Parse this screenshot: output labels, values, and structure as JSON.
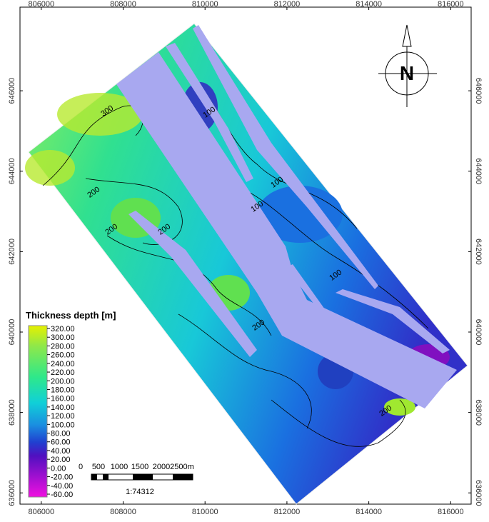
{
  "map": {
    "xlim": [
      805480,
      816500
    ],
    "ylim": [
      635720,
      648080
    ],
    "xticks": [
      806000,
      808000,
      810000,
      812000,
      814000,
      816000
    ],
    "yticks": [
      636000,
      638000,
      640000,
      642000,
      644000,
      646000
    ],
    "contour_labels": [
      "300",
      "200",
      "200",
      "200",
      "100",
      "100",
      "100",
      "100",
      "200",
      "200"
    ],
    "north_label": "N"
  },
  "legend": {
    "title": "Thickness depth [m]",
    "ticks": [
      {
        "value": 320,
        "label": "320.00"
      },
      {
        "value": 300,
        "label": "300.00"
      },
      {
        "value": 280,
        "label": "280.00"
      },
      {
        "value": 260,
        "label": "260.00"
      },
      {
        "value": 240,
        "label": "240.00"
      },
      {
        "value": 220,
        "label": "220.00"
      },
      {
        "value": 200,
        "label": "200.00"
      },
      {
        "value": 180,
        "label": "180.00"
      },
      {
        "value": 160,
        "label": "160.00"
      },
      {
        "value": 140,
        "label": "140.00"
      },
      {
        "value": 120,
        "label": "120.00"
      },
      {
        "value": 100,
        "label": "100.00"
      },
      {
        "value": 80,
        "label": "80.00"
      },
      {
        "value": 60,
        "label": "60.00"
      },
      {
        "value": 40,
        "label": "40.00"
      },
      {
        "value": 20,
        "label": "20.00"
      },
      {
        "value": 0,
        "label": "0.00"
      },
      {
        "value": -20,
        "label": "-20.00"
      },
      {
        "value": -40,
        "label": "-40.00"
      },
      {
        "value": -60,
        "label": "-60.00"
      }
    ]
  },
  "scale_bar": {
    "labels": [
      "0",
      "500",
      "1000",
      "1500",
      "2000",
      "2500m"
    ],
    "ratio": "1:74312"
  }
}
